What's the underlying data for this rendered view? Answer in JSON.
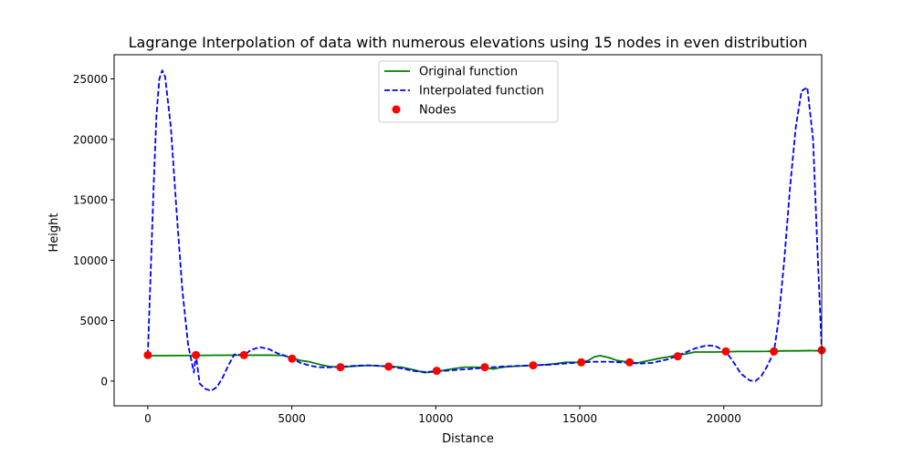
{
  "chart_data": {
    "type": "line",
    "title": "Lagrange Interpolation of data with numerous elevations using 15 nodes in even distribution",
    "xlabel": "Distance",
    "ylabel": "Height",
    "xlim": [
      -1170,
      23400
    ],
    "ylim": [
      -2050,
      27000
    ],
    "xticks": [
      0,
      5000,
      10000,
      15000,
      20000
    ],
    "yticks": [
      0,
      5000,
      10000,
      15000,
      20000,
      25000
    ],
    "grid": false,
    "legend_position": "upper center",
    "colors": {
      "original": "#008000",
      "interpolated": "#0000ff",
      "nodes": "#ff0000"
    },
    "series": [
      {
        "name": "Original function",
        "style": "solid",
        "x": [
          0,
          1000,
          1670,
          2500,
          3340,
          4200,
          4700,
          5010,
          5300,
          5600,
          6000,
          6300,
          6700,
          7300,
          7700,
          8000,
          8360,
          8800,
          9200,
          9600,
          10030,
          10300,
          10700,
          11000,
          11400,
          11700,
          12000,
          12200,
          12500,
          13000,
          13380,
          13800,
          14200,
          14500,
          15050,
          15300,
          15500,
          15700,
          16000,
          16300,
          16730,
          17000,
          17300,
          17700,
          18060,
          18400,
          18700,
          19000,
          19400,
          19700,
          20070,
          20500,
          21000,
          21500,
          21740,
          22200,
          22600,
          23000,
          23400
        ],
        "y": [
          2100,
          2110,
          2120,
          2140,
          2140,
          2150,
          2120,
          1900,
          1700,
          1600,
          1350,
          1200,
          1150,
          1250,
          1300,
          1250,
          1230,
          1150,
          950,
          700,
          780,
          900,
          1050,
          1150,
          1150,
          1100,
          1000,
          1100,
          1200,
          1250,
          1300,
          1350,
          1450,
          1550,
          1550,
          1700,
          2000,
          2100,
          1950,
          1700,
          1550,
          1500,
          1650,
          1850,
          2000,
          2150,
          2250,
          2400,
          2400,
          2400,
          2420,
          2450,
          2450,
          2460,
          2480,
          2500,
          2500,
          2520,
          2500
        ]
      },
      {
        "name": "Interpolated function",
        "style": "dashed",
        "x": [
          0,
          100,
          200,
          300,
          400,
          500,
          600,
          800,
          1000,
          1200,
          1400,
          1600,
          1670,
          1800,
          2000,
          2200,
          2400,
          2600,
          2800,
          3000,
          3340,
          3600,
          3900,
          4200,
          4500,
          5010,
          5300,
          5600,
          5900,
          6200,
          6700,
          7100,
          7500,
          7900,
          8360,
          8800,
          9200,
          9600,
          10030,
          10600,
          11200,
          11700,
          12300,
          12800,
          13380,
          13900,
          14500,
          15050,
          15500,
          16000,
          16400,
          16730,
          17100,
          17500,
          18060,
          18600,
          19000,
          19400,
          19700,
          20070,
          20300,
          20600,
          20900,
          21100,
          21300,
          21500,
          21740,
          21900,
          22100,
          22300,
          22500,
          22700,
          22900,
          23100,
          23250,
          23400
        ],
        "y": [
          2150,
          9000,
          16000,
          22000,
          25000,
          25700,
          25200,
          21000,
          14000,
          7500,
          3000,
          700,
          2150,
          -200,
          -650,
          -800,
          -500,
          300,
          1300,
          2200,
          2150,
          2600,
          2800,
          2650,
          2300,
          1900,
          1500,
          1300,
          1150,
          1130,
          1180,
          1250,
          1300,
          1280,
          1200,
          1050,
          850,
          750,
          800,
          900,
          1000,
          1100,
          1200,
          1250,
          1300,
          1350,
          1450,
          1550,
          1600,
          1600,
          1550,
          1500,
          1450,
          1500,
          1800,
          2300,
          2700,
          2950,
          2900,
          2450,
          1700,
          600,
          50,
          0,
          400,
          1200,
          2400,
          5000,
          10000,
          16000,
          21000,
          24000,
          24300,
          20000,
          11000,
          2600
        ]
      },
      {
        "name": "Nodes",
        "style": "scatter",
        "x": [
          0,
          1670,
          3340,
          5010,
          6690,
          8360,
          10030,
          11700,
          13380,
          15050,
          16730,
          18400,
          20070,
          21740,
          23400
        ],
        "y": [
          2150,
          2150,
          2150,
          1850,
          1150,
          1200,
          850,
          1150,
          1300,
          1550,
          1550,
          2050,
          2450,
          2450,
          2550
        ]
      }
    ]
  }
}
